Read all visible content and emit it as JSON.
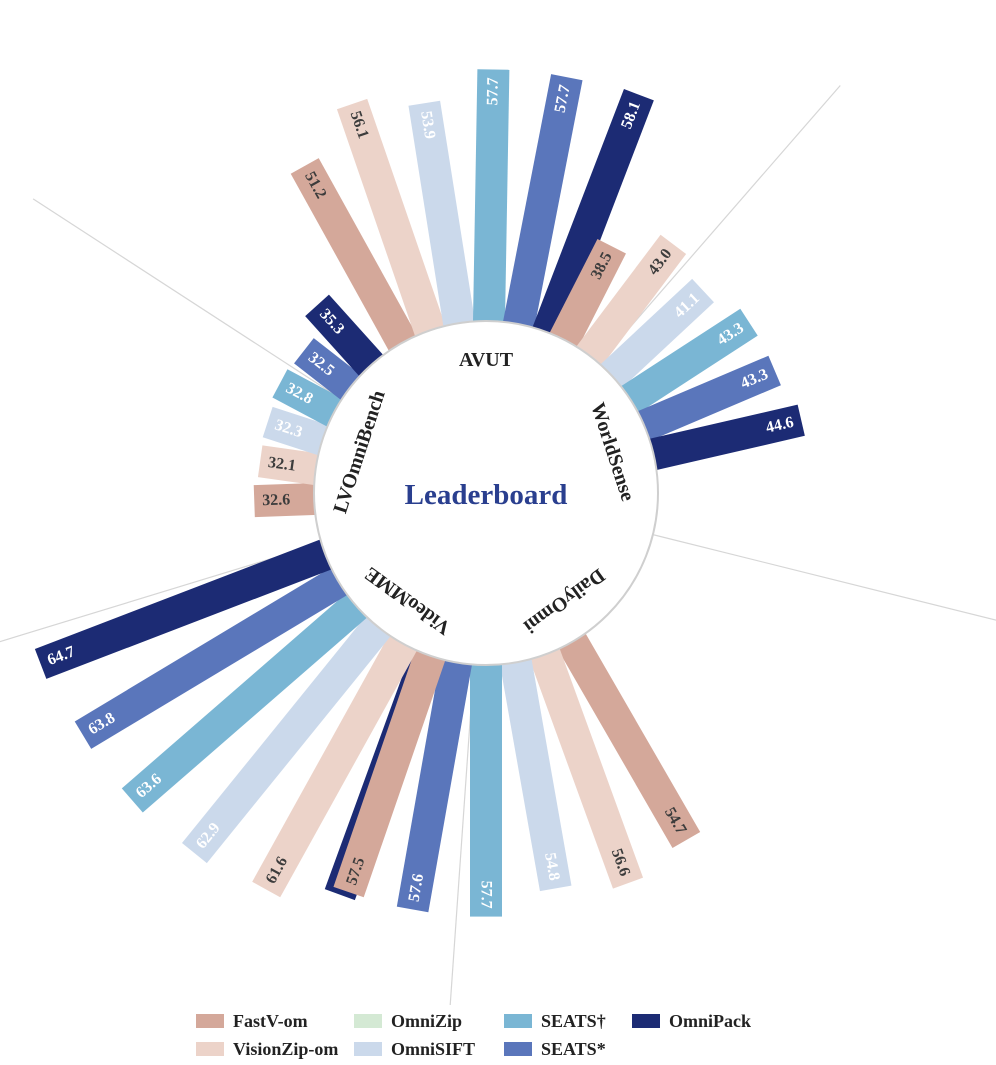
{
  "chart_data": {
    "type": "radial-bar",
    "title": "Leaderboard",
    "series_names": [
      "FastV-om",
      "VisionZip-om",
      "OmniZip",
      "OmniSIFT",
      "SEATS†",
      "SEATS*",
      "OmniPack"
    ],
    "colors": [
      "#d4a89a",
      "#ecd3c9",
      "#d4e9d4",
      "#cbd9eb",
      "#7ab6d4",
      "#5a76bb",
      "#1c2b74"
    ],
    "categories": [
      {
        "name": "AVUT",
        "values": [
          51.2,
          56.1,
          53.9,
          57.7,
          57.7,
          58.1
        ],
        "series": [
          0,
          1,
          3,
          4,
          5,
          6
        ]
      },
      {
        "name": "WorldSense",
        "values": [
          38.5,
          43.0,
          41.1,
          43.3,
          43.3,
          44.6
        ],
        "series": [
          0,
          1,
          3,
          4,
          5,
          6
        ]
      },
      {
        "name": "DailyOmni",
        "values": [
          54.7,
          56.6,
          54.8,
          57.7,
          57.6,
          58.2
        ],
        "series": [
          0,
          1,
          3,
          4,
          5,
          6
        ]
      },
      {
        "name": "VideoMME",
        "values": [
          57.5,
          61.6,
          62.9,
          63.6,
          63.8,
          64.7
        ],
        "series": [
          0,
          1,
          3,
          4,
          5,
          6
        ]
      },
      {
        "name": "LVOmniBench",
        "values": [
          32.6,
          32.1,
          32.3,
          32.8,
          32.5,
          35.3
        ],
        "series": [
          0,
          1,
          3,
          4,
          5,
          6
        ]
      }
    ],
    "legend_position": "bottom"
  }
}
